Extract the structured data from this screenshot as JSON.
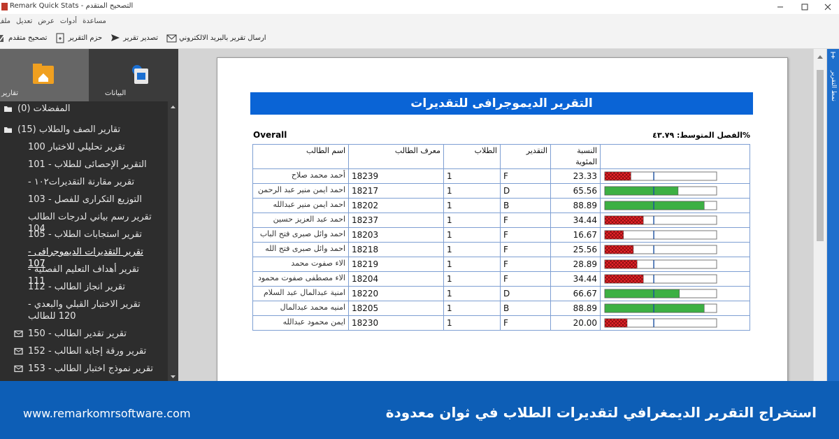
{
  "window": {
    "title": "Remark Quick Stats - التصحيح المتقدم"
  },
  "menu": [
    "ملف",
    "تعديل",
    "عرض",
    "أدوات",
    "مساعدة"
  ],
  "toolbar": [
    "تصحيح متقدم",
    "حزم التقرير",
    "تصدير تقرير",
    "ارسال تقرير بالبريد الالكتروني"
  ],
  "sidebar": {
    "tabs": [
      "تقارير",
      "البيانات"
    ],
    "tree": {
      "favorites": "المفضلات (0)",
      "group": "تقارير الصف والطلاب (15)",
      "reports": [
        "تقرير تحليلي للاختبار 100",
        "التقرير الإحصائى للطلاب - 101",
        "تقرير مقارنة التقديرات١٠٢ -",
        "التوزيع التكرارى للفصل - 103",
        "تقرير رسم بياني لدرجات الطالب 104",
        "تقرير استجابات الطلاب - 105",
        "تقرير التقديرات الديموجرافى - 107",
        "تقرير أهداف التعليم الفصلية - 111",
        "تقرير انجاز الطالب - 112",
        "تقرير الاختبار القبلي والبعدي - 120 للطالب"
      ],
      "mail_reports": [
        "تقرير تقدير الطالب - 150",
        "تقرير ورقة إجابة الطالب - 152",
        "تقرير نموذج اختبار الطالب - 153"
      ]
    }
  },
  "side_tab": "نمط التقرير",
  "report": {
    "title": "التقرير الديموجرافى للتقديرات",
    "overall_label": "Overall",
    "average_label": "%الفصل المتوسط: ٤٣.٧٩",
    "average": 43.79,
    "bar_range": [
      0,
      100
    ],
    "bar_colors": {
      "F": "#e8232a",
      "D": "#3cb043",
      "B": "#3cb043"
    },
    "hatched_grades": [
      "F"
    ],
    "columns": [
      "اسم الطالب",
      "معرف الطالب",
      "الطلاب",
      "التقدير",
      "النسبة المئوية"
    ],
    "rows": [
      {
        "name": "أحمد محمد صلاح",
        "id": "18239",
        "students": "1",
        "grade": "F",
        "percent": 23.33
      },
      {
        "name": "احمد ايمن منير عبد الرحمن",
        "id": "18217",
        "students": "1",
        "grade": "D",
        "percent": 65.56
      },
      {
        "name": "احمد ايمن منير عبدالله",
        "id": "18202",
        "students": "1",
        "grade": "B",
        "percent": 88.89
      },
      {
        "name": "احمد عبد العزيز حسين",
        "id": "18237",
        "students": "1",
        "grade": "F",
        "percent": 34.44
      },
      {
        "name": "احمد وائل صبرى فتح الباب",
        "id": "18203",
        "students": "1",
        "grade": "F",
        "percent": 16.67
      },
      {
        "name": "احمد وائل صبرى فتح الله",
        "id": "18218",
        "students": "1",
        "grade": "F",
        "percent": 25.56
      },
      {
        "name": "الاء صفوت محمد",
        "id": "18219",
        "students": "1",
        "grade": "F",
        "percent": 28.89
      },
      {
        "name": "الاء مصطفى صفوت محمود",
        "id": "18204",
        "students": "1",
        "grade": "F",
        "percent": 34.44
      },
      {
        "name": "امنية عبدالمال عبد السلام",
        "id": "18220",
        "students": "1",
        "grade": "D",
        "percent": 66.67
      },
      {
        "name": "امنيه محمد عبدالمال",
        "id": "18205",
        "students": "1",
        "grade": "B",
        "percent": 88.89
      },
      {
        "name": "ايمن محمود عبدالله",
        "id": "18230",
        "students": "1",
        "grade": "F",
        "percent": 20,
        "percent_label": "20.00"
      }
    ]
  },
  "banner": {
    "headline": "استخراج التقرير الديمغرافي لتقديرات الطلاب في ثوان معدودة",
    "url": "www.remarkomrsoftware.com"
  }
}
